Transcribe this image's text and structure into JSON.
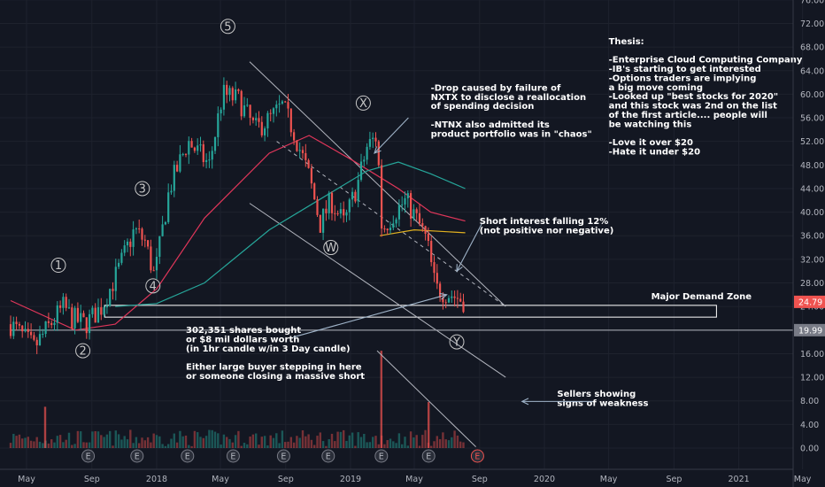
{
  "chart_data": {
    "type": "candlestick",
    "title": "",
    "xlabel": "",
    "ylabel": "",
    "x_ticks": [
      "May",
      "Sep",
      "2018",
      "May",
      "Sep",
      "2019",
      "May",
      "Sep",
      "2020",
      "May",
      "Sep",
      "2021",
      "May"
    ],
    "y_ticks": [
      "0.00",
      "4.00",
      "8.00",
      "12.00",
      "16.00",
      "20.00",
      "24.00",
      "28.00",
      "32.00",
      "36.00",
      "40.00",
      "44.00",
      "48.00",
      "52.00",
      "56.00",
      "60.00",
      "64.00",
      "68.00",
      "72.00",
      "76.00"
    ],
    "ylim": [
      0,
      76
    ],
    "price_tags": [
      {
        "label": "24.79",
        "value": 24.79,
        "color": "#ef5350"
      },
      {
        "label": "19.99",
        "value": 19.99,
        "color": "#787b86"
      }
    ],
    "price_path": [
      {
        "date": "2017-04-01",
        "price": 21
      },
      {
        "date": "2017-05-15",
        "price": 17
      },
      {
        "date": "2017-06-15",
        "price": 21
      },
      {
        "date": "2017-07-10",
        "price": 24
      },
      {
        "date": "2017-07-25",
        "price": 22
      },
      {
        "date": "2017-08-20",
        "price": 21
      },
      {
        "date": "2017-09-20",
        "price": 24
      },
      {
        "date": "2017-10-20",
        "price": 30
      },
      {
        "date": "2017-11-20",
        "price": 37
      },
      {
        "date": "2017-12-10",
        "price": 35
      },
      {
        "date": "2017-12-28",
        "price": 29
      },
      {
        "date": "2018-01-25",
        "price": 44
      },
      {
        "date": "2018-03-01",
        "price": 52
      },
      {
        "date": "2018-04-10",
        "price": 48
      },
      {
        "date": "2018-05-05",
        "price": 60
      },
      {
        "date": "2018-06-05",
        "price": 59
      },
      {
        "date": "2018-07-05",
        "price": 54
      },
      {
        "date": "2018-08-05",
        "price": 56
      },
      {
        "date": "2018-08-25",
        "price": 58
      },
      {
        "date": "2018-09-15",
        "price": 54
      },
      {
        "date": "2018-10-15",
        "price": 46
      },
      {
        "date": "2018-11-05",
        "price": 38
      },
      {
        "date": "2018-11-25",
        "price": 42
      },
      {
        "date": "2018-12-20",
        "price": 38
      },
      {
        "date": "2019-01-15",
        "price": 45
      },
      {
        "date": "2019-02-01",
        "price": 51
      },
      {
        "date": "2019-02-20",
        "price": 53
      },
      {
        "date": "2019-03-01",
        "price": 37
      },
      {
        "date": "2019-03-25",
        "price": 40
      },
      {
        "date": "2019-04-15",
        "price": 42
      },
      {
        "date": "2019-05-10",
        "price": 38
      },
      {
        "date": "2019-05-25",
        "price": 35
      },
      {
        "date": "2019-06-10",
        "price": 27
      },
      {
        "date": "2019-07-10",
        "price": 26
      },
      {
        "date": "2019-08-05",
        "price": 24.79
      }
    ],
    "moving_averages": [
      {
        "color": "#e0365a",
        "path": [
          {
            "date": "2017-04-01",
            "price": 25
          },
          {
            "date": "2017-08-01",
            "price": 20
          },
          {
            "date": "2017-10-15",
            "price": 21
          },
          {
            "date": "2018-01-01",
            "price": 27
          },
          {
            "date": "2018-04-01",
            "price": 39
          },
          {
            "date": "2018-08-01",
            "price": 50
          },
          {
            "date": "2018-10-15",
            "price": 53
          },
          {
            "date": "2019-01-01",
            "price": 49
          },
          {
            "date": "2019-04-01",
            "price": 44
          },
          {
            "date": "2019-06-01",
            "price": 40
          },
          {
            "date": "2019-08-05",
            "price": 38.5
          }
        ]
      },
      {
        "color": "#26a69a",
        "path": [
          {
            "date": "2017-10-15",
            "price": 24
          },
          {
            "date": "2018-01-01",
            "price": 24.5
          },
          {
            "date": "2018-04-01",
            "price": 28
          },
          {
            "date": "2018-08-01",
            "price": 37
          },
          {
            "date": "2018-11-01",
            "price": 42
          },
          {
            "date": "2019-02-01",
            "price": 47
          },
          {
            "date": "2019-04-01",
            "price": 48.5
          },
          {
            "date": "2019-06-01",
            "price": 46.5
          },
          {
            "date": "2019-08-05",
            "price": 44
          }
        ]
      },
      {
        "color": "#e0b020",
        "path": [
          {
            "date": "2019-02-25",
            "price": 36
          },
          {
            "date": "2019-05-01",
            "price": 37
          },
          {
            "date": "2019-08-05",
            "price": 36.5
          }
        ]
      }
    ],
    "volume_spikes": [
      {
        "date": "2017-06-05",
        "price": 7.0,
        "color": "#ef5350"
      },
      {
        "date": "2019-02-28",
        "price": 16.5,
        "color": "#ef5350"
      },
      {
        "date": "2019-05-28",
        "price": 7.8,
        "color": "#ef5350"
      }
    ],
    "earnings_dates": [
      "2017-08-25",
      "2017-11-25",
      "2018-02-28",
      "2018-05-25",
      "2018-08-28",
      "2018-11-20",
      "2019-02-28",
      "2019-05-28",
      "2019-08-28"
    ],
    "earnings_marker": "E",
    "channel_lines": [
      {
        "style": "solid",
        "from": {
          "date": "2018-06-25",
          "price": 65.5
        },
        "to": {
          "date": "2019-10-20",
          "price": 24
        }
      },
      {
        "style": "solid",
        "from": {
          "date": "2018-06-25",
          "price": 41.5
        },
        "to": {
          "date": "2019-10-20",
          "price": 12
        }
      },
      {
        "style": "dashed",
        "from": {
          "date": "2018-08-15",
          "price": 52
        },
        "to": {
          "date": "2019-10-20",
          "price": 24
        }
      },
      {
        "style": "solid",
        "from": {
          "date": "2019-02-20",
          "price": 16.5
        },
        "to": {
          "date": "2019-08-25",
          "price": 0.2
        }
      }
    ],
    "horizontal_lines": [
      {
        "price": 19.99,
        "color": "#9598a1",
        "from": "2017-04-01"
      }
    ],
    "demand_zone": {
      "label": "Major Demand Zone",
      "top": 24.2,
      "bottom": 22.2,
      "from": "2017-09-25",
      "to": "2020-11-20"
    },
    "wave_labels": [
      {
        "text": "1",
        "date": "2017-06-30",
        "price": 31
      },
      {
        "text": "2",
        "date": "2017-08-15",
        "price": 16.5
      },
      {
        "text": "3",
        "date": "2017-12-05",
        "price": 44
      },
      {
        "text": "4",
        "date": "2017-12-25",
        "price": 27.5
      },
      {
        "text": "5",
        "date": "2018-05-15",
        "price": 71.5
      },
      {
        "text": "W",
        "date": "2018-11-25",
        "price": 34
      },
      {
        "text": "X",
        "date": "2019-01-25",
        "price": 58.5
      },
      {
        "text": "Y",
        "date": "2019-07-20",
        "price": 18
      }
    ],
    "annotations": [
      {
        "lines": [
          "-Drop caused by failure of",
          "NXTX to disclose a reallocation",
          "of spending decision",
          "",
          "-NTNX also admitted its",
          "product portfolio was in \"chaos\""
        ],
        "date": "2019-06-01",
        "price": 60.6
      },
      {
        "lines": [
          "Thesis:",
          "",
          "-Enterprise Cloud Computing Company",
          "-IB's starting to get interested",
          "-Options traders are implying",
          " a big move coming",
          "-Looked up \"best stocks for 2020\"",
          " and this stock was 2nd on the list",
          " of the first article.... people will",
          " be watching this",
          "",
          "-Love it over $20",
          "-Hate it under $20"
        ],
        "date": "2020-05-01",
        "price": 68.5
      },
      {
        "lines": [
          "Short interest falling 12%",
          "(not positive nor negative)"
        ],
        "date": "2019-09-01",
        "price": 38
      },
      {
        "lines": [
          "302,351 shares bought",
          "or $8 mil dollars worth",
          "(in 1hr candle w/in 3 Day candle)",
          "",
          "Either large buyer stepping in here",
          "or someone closing a massive short"
        ],
        "date": "2018-02-25",
        "price": 19.5
      },
      {
        "lines": [
          "Sellers showing",
          "signs of weakness"
        ],
        "date": "2020-01-25",
        "price": 8.7
      }
    ],
    "arrows": [
      {
        "from": {
          "date": "2019-04-20",
          "price": 56
        },
        "to": {
          "date": "2019-02-15",
          "price": 50
        }
      },
      {
        "from": {
          "date": "2019-09-05",
          "price": 38
        },
        "to": {
          "date": "2019-07-20",
          "price": 30
        }
      },
      {
        "from": {
          "date": "2018-09-15",
          "price": 18.8
        },
        "to": {
          "date": "2019-07-01",
          "price": 26
        }
      },
      {
        "from": {
          "date": "2020-04-01",
          "price": 7.9
        },
        "to": {
          "date": "2019-11-20",
          "price": 7.9
        }
      }
    ]
  }
}
